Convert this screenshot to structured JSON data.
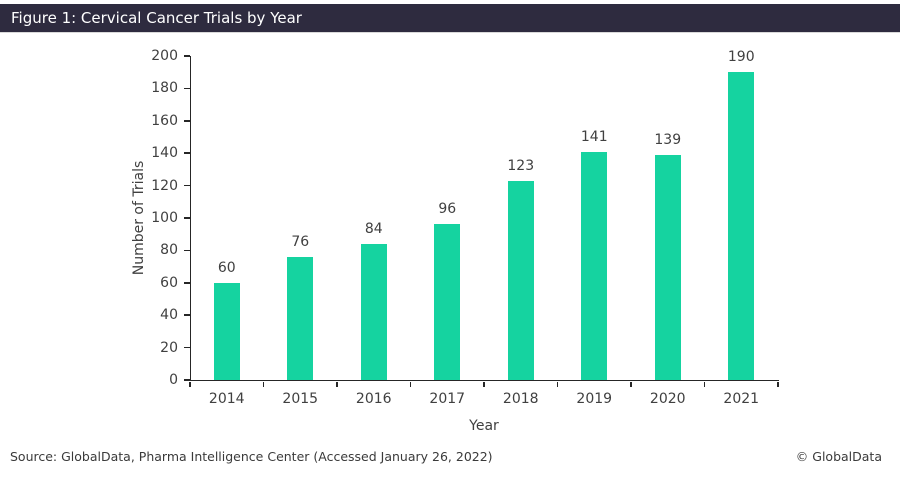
{
  "header": {
    "title": "Figure 1: Cervical Cancer Trials by Year"
  },
  "chart_data": {
    "type": "bar",
    "categories": [
      "2014",
      "2015",
      "2016",
      "2017",
      "2018",
      "2019",
      "2020",
      "2021"
    ],
    "values": [
      60,
      76,
      84,
      96,
      123,
      141,
      139,
      190
    ],
    "title": "Figure 1: Cervical Cancer Trials by Year",
    "xlabel": "Year",
    "ylabel": "Number of Trials",
    "ylim": [
      0,
      200
    ],
    "ytick_step": 20,
    "grid": false,
    "legend": "none",
    "data_labels": true
  },
  "footer": {
    "source": "Source: GlobalData, Pharma Intelligence Center (Accessed January 26, 2022)",
    "copyright": "© GlobalData"
  },
  "colors": {
    "header_bg": "#2e2b3f",
    "header_text": "#ffffff",
    "bar": "#15d3a0",
    "label_text": "#404040",
    "axis": "#262626"
  }
}
